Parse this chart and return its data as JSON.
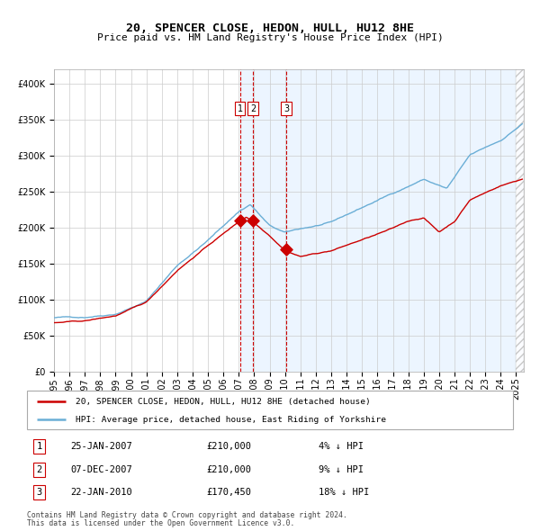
{
  "title": "20, SPENCER CLOSE, HEDON, HULL, HU12 8HE",
  "subtitle": "Price paid vs. HM Land Registry's House Price Index (HPI)",
  "legend_line1": "20, SPENCER CLOSE, HEDON, HULL, HU12 8HE (detached house)",
  "legend_line2": "HPI: Average price, detached house, East Riding of Yorkshire",
  "footnote1": "Contains HM Land Registry data © Crown copyright and database right 2024.",
  "footnote2": "This data is licensed under the Open Government Licence v3.0.",
  "transactions": [
    {
      "num": 1,
      "date": "25-JAN-2007",
      "date_x": 2007.07,
      "price": 210000,
      "pct": "4%",
      "dir": "↓"
    },
    {
      "num": 2,
      "date": "07-DEC-2007",
      "date_x": 2007.93,
      "price": 210000,
      "pct": "9%",
      "dir": "↓"
    },
    {
      "num": 3,
      "date": "22-JAN-2010",
      "date_x": 2010.07,
      "price": 170450,
      "pct": "18%",
      "dir": "↓"
    }
  ],
  "hpi_color": "#6aaed6",
  "price_color": "#cc0000",
  "bg_color": "#ddeeff",
  "grid_color": "#cccccc",
  "ylim": [
    0,
    420000
  ],
  "xlim_start": 1995.0,
  "xlim_end": 2025.5
}
